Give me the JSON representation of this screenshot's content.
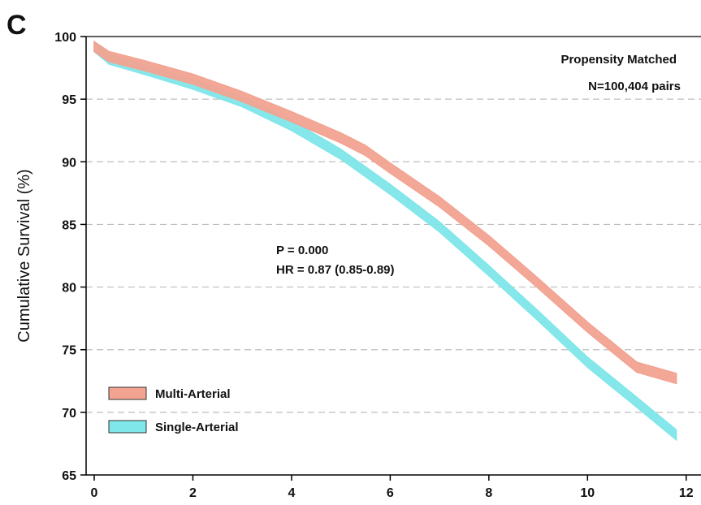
{
  "panel_label": "C",
  "chart_data": {
    "type": "line",
    "title": "",
    "xlabel": "",
    "ylabel": "Cumulative Survival (%)",
    "xlim": [
      0,
      12.3
    ],
    "ylim": [
      65,
      100
    ],
    "x_ticks": [
      0,
      2,
      4,
      6,
      8,
      10,
      12
    ],
    "y_ticks": [
      65,
      70,
      75,
      80,
      85,
      90,
      95,
      100
    ],
    "grid": "horizontal dashed",
    "annotations": {
      "top_right_line1": "Propensity Matched",
      "top_right_line2": "N=100,404 pairs",
      "stats_line1": "P = 0.000",
      "stats_line2": "HR = 0.87 (0.85-0.89)"
    },
    "legend": {
      "placement": "bottom-left"
    },
    "series": [
      {
        "name": "Multi-Arterial",
        "color": "#f2a391",
        "band_halfwidth": 0.4,
        "x": [
          0,
          0.3,
          1,
          2,
          3,
          4,
          5,
          5.5,
          6,
          7,
          8,
          9,
          10,
          11,
          11.8
        ],
        "y": [
          99.2,
          98.4,
          97.7,
          96.6,
          95.2,
          93.6,
          91.9,
          90.9,
          89.5,
          86.8,
          83.7,
          80.3,
          76.8,
          73.6,
          72.7
        ]
      },
      {
        "name": "Single-Arterial",
        "color": "#7fe6ea",
        "band_halfwidth": 0.4,
        "x": [
          0,
          0.3,
          1,
          2,
          3,
          4,
          5,
          6,
          7,
          8,
          9,
          10,
          11,
          11.8
        ],
        "y": [
          99.2,
          98.2,
          97.4,
          96.2,
          94.8,
          92.9,
          90.6,
          87.8,
          84.8,
          81.3,
          77.7,
          74.0,
          70.8,
          68.2
        ]
      }
    ]
  }
}
